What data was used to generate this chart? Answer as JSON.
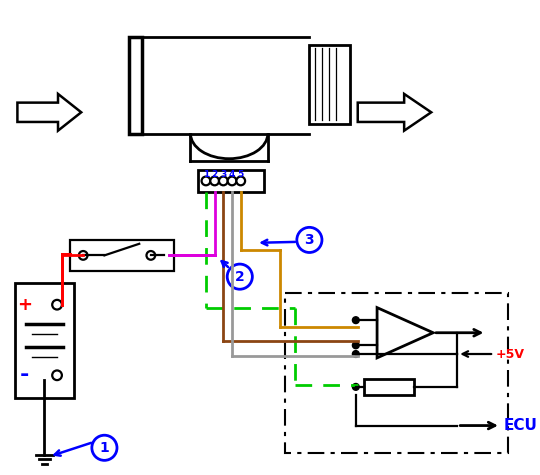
{
  "bg_color": "#ffffff",
  "wire_green": "#00cc00",
  "wire_magenta": "#dd00dd",
  "wire_orange": "#cc8800",
  "wire_brown": "#8B4513",
  "wire_gray": "#999999",
  "wire_red": "#ff0000",
  "label_plus_color": "#ff0000",
  "label_minus_color": "#0000ff",
  "label_5v_color": "#ff0000",
  "label_ecu_color": "#0000ff",
  "callout_color": "#0000ff"
}
